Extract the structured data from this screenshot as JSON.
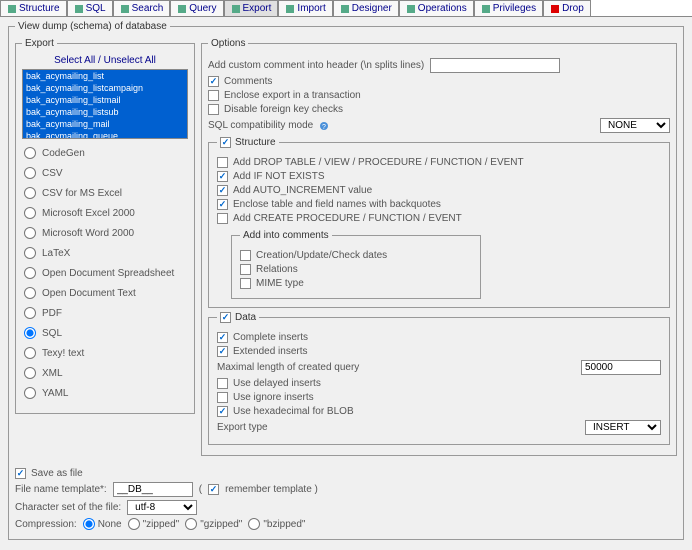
{
  "tabs": [
    {
      "label": "Structure",
      "icon": "structure",
      "active": false
    },
    {
      "label": "SQL",
      "icon": "sql",
      "active": false
    },
    {
      "label": "Search",
      "icon": "search",
      "active": false
    },
    {
      "label": "Query",
      "icon": "query",
      "active": false
    },
    {
      "label": "Export",
      "icon": "export",
      "active": true
    },
    {
      "label": "Import",
      "icon": "import",
      "active": false
    },
    {
      "label": "Designer",
      "icon": "designer",
      "active": false
    },
    {
      "label": "Operations",
      "icon": "operations",
      "active": false
    },
    {
      "label": "Privileges",
      "icon": "privileges",
      "active": false
    },
    {
      "label": "Drop",
      "icon": "drop",
      "active": false
    }
  ],
  "viewdump_legend": "View dump (schema) of database",
  "export": {
    "legend": "Export",
    "select_all": "Select All",
    "unselect_all": "Unselect All",
    "tables": [
      "bak_acymailing_list",
      "bak_acymailing_listcampaign",
      "bak_acymailing_listmail",
      "bak_acymailing_listsub",
      "bak_acymailing_mail",
      "bak_acymailing_queue"
    ],
    "formats": [
      {
        "name": "codegen",
        "label": "CodeGen",
        "checked": false
      },
      {
        "name": "csv",
        "label": "CSV",
        "checked": false
      },
      {
        "name": "csvexcel",
        "label": "CSV for MS Excel",
        "checked": false
      },
      {
        "name": "excel2000",
        "label": "Microsoft Excel 2000",
        "checked": false
      },
      {
        "name": "word2000",
        "label": "Microsoft Word 2000",
        "checked": false
      },
      {
        "name": "latex",
        "label": "LaTeX",
        "checked": false
      },
      {
        "name": "ods",
        "label": "Open Document Spreadsheet",
        "checked": false
      },
      {
        "name": "odt",
        "label": "Open Document Text",
        "checked": false
      },
      {
        "name": "pdf",
        "label": "PDF",
        "checked": false
      },
      {
        "name": "sql",
        "label": "SQL",
        "checked": true
      },
      {
        "name": "texy",
        "label": "Texy! text",
        "checked": false
      },
      {
        "name": "xml",
        "label": "XML",
        "checked": false
      },
      {
        "name": "yaml",
        "label": "YAML",
        "checked": false
      }
    ]
  },
  "options": {
    "legend": "Options",
    "custom_comment_label": "Add custom comment into header (\\n splits lines)",
    "custom_comment_value": "",
    "comments": {
      "label": "Comments",
      "checked": true
    },
    "transaction": {
      "label": "Enclose export in a transaction",
      "checked": false
    },
    "disable_fk": {
      "label": "Disable foreign key checks",
      "checked": false
    },
    "sql_compat_label": "SQL compatibility mode",
    "sql_compat_value": "NONE",
    "structure": {
      "legend": "Structure",
      "checked": true,
      "drop": {
        "label": "Add DROP TABLE / VIEW / PROCEDURE / FUNCTION / EVENT",
        "checked": false
      },
      "ifnot": {
        "label": "Add IF NOT EXISTS",
        "checked": true
      },
      "autoinc": {
        "label": "Add AUTO_INCREMENT value",
        "checked": true
      },
      "backquotes": {
        "label": "Enclose table and field names with backquotes",
        "checked": true
      },
      "createproc": {
        "label": "Add CREATE PROCEDURE / FUNCTION / EVENT",
        "checked": false
      },
      "addinto_legend": "Add into comments",
      "dates": {
        "label": "Creation/Update/Check dates",
        "checked": false
      },
      "relations": {
        "label": "Relations",
        "checked": false
      },
      "mime": {
        "label": "MIME type",
        "checked": false
      }
    },
    "data": {
      "legend": "Data",
      "checked": true,
      "complete": {
        "label": "Complete inserts",
        "checked": true
      },
      "extended": {
        "label": "Extended inserts",
        "checked": true
      },
      "maxlen_label": "Maximal length of created query",
      "maxlen_value": "50000",
      "delayed": {
        "label": "Use delayed inserts",
        "checked": false
      },
      "ignore": {
        "label": "Use ignore inserts",
        "checked": false
      },
      "hexblob": {
        "label": "Use hexadecimal for BLOB",
        "checked": true
      },
      "export_type_label": "Export type",
      "export_type_value": "INSERT"
    }
  },
  "saveas": {
    "legend": "Save as file",
    "checked": true,
    "filetpl_label": "File name template*:",
    "filetpl_value": "__DB__",
    "remember_label": "remember template )",
    "charset_label": "Character set of the file:",
    "charset_value": "utf-8",
    "compression_label": "Compression:",
    "options": [
      {
        "name": "none",
        "label": "None",
        "checked": true
      },
      {
        "name": "zipped",
        "label": "\"zipped\"",
        "checked": false
      },
      {
        "name": "gzipped",
        "label": "\"gzipped\"",
        "checked": false
      },
      {
        "name": "bzipped",
        "label": "\"bzipped\"",
        "checked": false
      }
    ]
  }
}
